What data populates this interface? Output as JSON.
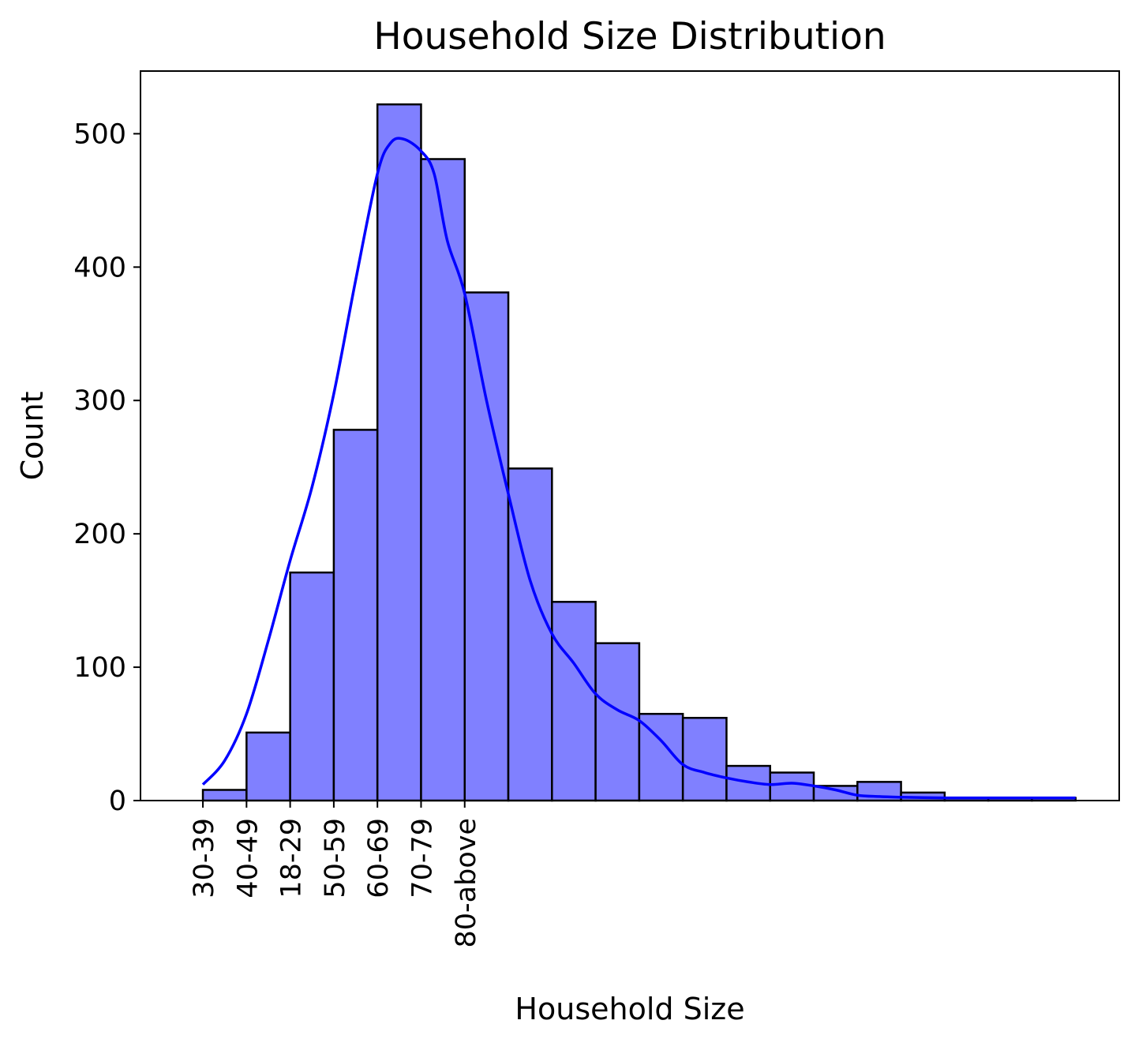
{
  "chart_data": {
    "type": "bar",
    "title": "Household Size Distribution",
    "xlabel": "Household Size",
    "ylabel": "Count",
    "ylim": [
      0,
      547
    ],
    "xlim": [
      -1.43,
      21.0
    ],
    "yticks": [
      0,
      100,
      200,
      300,
      400,
      500
    ],
    "xtick_labels": [
      "30-39",
      "40-49",
      "18-29",
      "50-59",
      "60-69",
      "70-79",
      "80-above"
    ],
    "bin_width": 1,
    "bar_counts": [
      8,
      51,
      171,
      278,
      522,
      481,
      381,
      249,
      149,
      118,
      65,
      62,
      26,
      21,
      11,
      14,
      6,
      2,
      2,
      2
    ],
    "kde_curve": {
      "x": [
        0,
        0.5,
        1,
        1.5,
        2,
        2.5,
        3,
        3.5,
        4,
        4.3,
        4.6,
        5,
        5.3,
        5.6,
        6,
        6.5,
        7,
        7.5,
        8,
        8.5,
        9,
        9.5,
        10,
        10.5,
        11,
        11.5,
        12,
        12.5,
        13,
        13.5,
        14,
        14.5,
        15,
        15.5,
        16,
        16.5,
        17,
        17.5,
        18,
        18.5,
        19,
        19.5,
        20
      ],
      "y": [
        12,
        30,
        65,
        120,
        180,
        235,
        305,
        390,
        470,
        493,
        496,
        487,
        470,
        420,
        380,
        300,
        230,
        165,
        125,
        103,
        80,
        68,
        60,
        45,
        27,
        21,
        17,
        14,
        12,
        13,
        11,
        8,
        4,
        3,
        2.5,
        2.2,
        2,
        2,
        2,
        2,
        2,
        2,
        2
      ]
    },
    "colors": {
      "bar_fill": "#8080ff",
      "bar_edge": "#000000",
      "kde": "#0000ff"
    }
  }
}
